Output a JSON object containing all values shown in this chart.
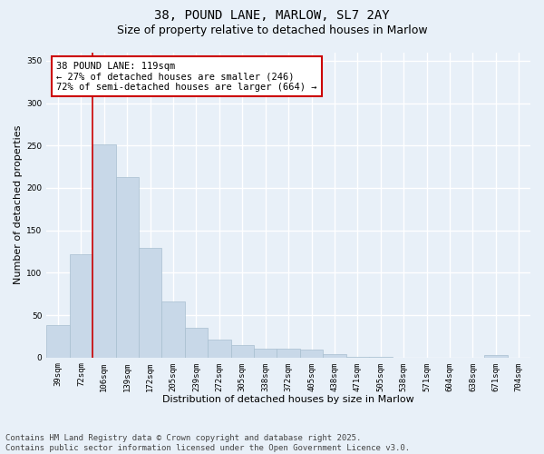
{
  "title1": "38, POUND LANE, MARLOW, SL7 2AY",
  "title2": "Size of property relative to detached houses in Marlow",
  "xlabel": "Distribution of detached houses by size in Marlow",
  "ylabel": "Number of detached properties",
  "categories": [
    "39sqm",
    "72sqm",
    "106sqm",
    "139sqm",
    "172sqm",
    "205sqm",
    "239sqm",
    "272sqm",
    "305sqm",
    "338sqm",
    "372sqm",
    "405sqm",
    "438sqm",
    "471sqm",
    "505sqm",
    "538sqm",
    "571sqm",
    "604sqm",
    "638sqm",
    "671sqm",
    "704sqm"
  ],
  "values": [
    38,
    122,
    251,
    213,
    129,
    66,
    35,
    21,
    15,
    10,
    10,
    9,
    4,
    1,
    1,
    0,
    0,
    0,
    0,
    3,
    0
  ],
  "bar_color": "#c8d8e8",
  "bar_edge_color": "#a8bfd0",
  "vline_x_index": 2,
  "vline_color": "#cc0000",
  "annotation_text": "38 POUND LANE: 119sqm\n← 27% of detached houses are smaller (246)\n72% of semi-detached houses are larger (664) →",
  "annotation_box_color": "#ffffff",
  "annotation_border_color": "#cc0000",
  "ylim": [
    0,
    360
  ],
  "yticks": [
    0,
    50,
    100,
    150,
    200,
    250,
    300,
    350
  ],
  "background_color": "#e8f0f8",
  "grid_color": "#ffffff",
  "footer": "Contains HM Land Registry data © Crown copyright and database right 2025.\nContains public sector information licensed under the Open Government Licence v3.0.",
  "title1_fontsize": 10,
  "title2_fontsize": 9,
  "annotation_fontsize": 7.5,
  "footer_fontsize": 6.5,
  "ylabel_fontsize": 8,
  "xlabel_fontsize": 8,
  "tick_fontsize": 6.5
}
